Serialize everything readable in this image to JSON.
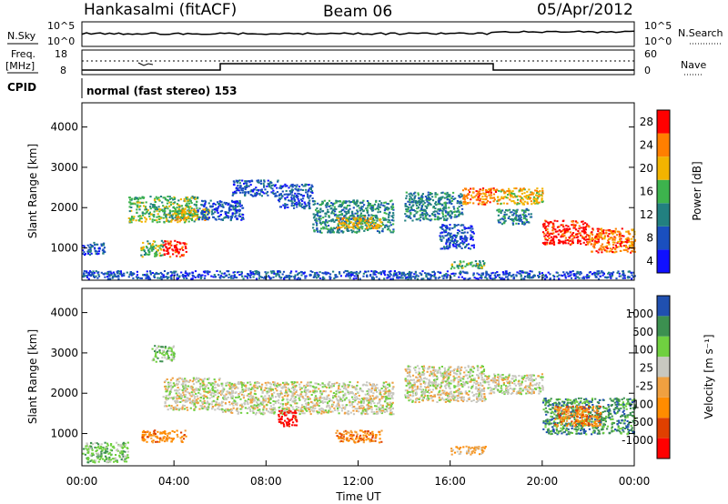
{
  "header": {
    "station": "Hankasalmi (fitACF)",
    "beam": "Beam 06",
    "date": "05/Apr/2012"
  },
  "strips": {
    "nsky_label": "N.Sky",
    "nsky_ticks": [
      "10^5",
      "10^0"
    ],
    "nsearch_label": "N.Search",
    "nsearch_ticks": [
      "10^5",
      "10^0"
    ],
    "freq_label": "Freq.",
    "freq_unit": "[MHz]",
    "freq_ticks": [
      "18",
      "8"
    ],
    "nave_label": "Nave",
    "nave_ticks": [
      "60",
      "0"
    ],
    "cpid_label": "CPID",
    "cpid_value": "normal (fast stereo) 153"
  },
  "chart_data": [
    {
      "type": "heatmap",
      "name": "power",
      "ylabel": "Slant Range [km]",
      "yticks": [
        "4000",
        "3000",
        "2000",
        "1000"
      ],
      "ylim": [
        200,
        4600
      ],
      "colorbar_label": "Power [dB]",
      "colorbar_ticks": [
        "28",
        "24",
        "20",
        "16",
        "12",
        "8",
        "4"
      ],
      "colors": [
        "#1010ff",
        "#1a4fbf",
        "#228080",
        "#3db34d",
        "#f2b400",
        "#ff7f00",
        "#ff0000"
      ],
      "blobs": [
        {
          "t": [
            0.0,
            1.0
          ],
          "r": [
            850,
            1150
          ],
          "v": 8
        },
        {
          "t": [
            2.0,
            5.0
          ],
          "r": [
            1650,
            2300
          ],
          "v": 14
        },
        {
          "t": [
            4.0,
            5.5
          ],
          "r": [
            1700,
            2000
          ],
          "v": 18
        },
        {
          "t": [
            5.0,
            7.0
          ],
          "r": [
            1700,
            2200
          ],
          "v": 6
        },
        {
          "t": [
            3.5,
            4.5
          ],
          "r": [
            800,
            1200
          ],
          "v": 28
        },
        {
          "t": [
            2.5,
            3.5
          ],
          "r": [
            800,
            1200
          ],
          "v": 14
        },
        {
          "t": [
            6.5,
            8.5
          ],
          "r": [
            2300,
            2700
          ],
          "v": 6
        },
        {
          "t": [
            8.5,
            10.0
          ],
          "r": [
            2000,
            2600
          ],
          "v": 8
        },
        {
          "t": [
            10.0,
            13.5
          ],
          "r": [
            1400,
            2200
          ],
          "v": 12
        },
        {
          "t": [
            11.0,
            13.0
          ],
          "r": [
            1500,
            1800
          ],
          "v": 18
        },
        {
          "t": [
            14.0,
            16.5
          ],
          "r": [
            1700,
            2400
          ],
          "v": 10
        },
        {
          "t": [
            15.5,
            17.0
          ],
          "r": [
            1000,
            1600
          ],
          "v": 8
        },
        {
          "t": [
            16.0,
            17.5
          ],
          "r": [
            500,
            700
          ],
          "v": 16
        },
        {
          "t": [
            16.5,
            18.0
          ],
          "r": [
            2100,
            2500
          ],
          "v": 24
        },
        {
          "t": [
            18.0,
            20.0
          ],
          "r": [
            2100,
            2500
          ],
          "v": 20
        },
        {
          "t": [
            18.0,
            19.5
          ],
          "r": [
            1600,
            2000
          ],
          "v": 12
        },
        {
          "t": [
            20.0,
            22.0
          ],
          "r": [
            1100,
            1700
          ],
          "v": 28
        },
        {
          "t": [
            22.0,
            24.0
          ],
          "r": [
            900,
            1500
          ],
          "v": 22
        },
        {
          "t": [
            0.0,
            24.0
          ],
          "r": [
            250,
            450
          ],
          "v": 6
        }
      ]
    },
    {
      "type": "heatmap",
      "name": "velocity",
      "ylabel": "Slant Range [km]",
      "yticks": [
        "4000",
        "3000",
        "2000",
        "1000"
      ],
      "ylim": [
        200,
        4600
      ],
      "colorbar_label": "Velocity [m s⁻¹]",
      "colorbar_ticks": [
        "1000",
        "500",
        "100",
        "25",
        "-25",
        "-100",
        "-500",
        "-1000"
      ],
      "colors": [
        "#ff0000",
        "#e04000",
        "#ff8c00",
        "#f0a040",
        "#c8c8c0",
        "#70d040",
        "#3c9050",
        "#2050b0"
      ],
      "blobs": [
        {
          "t": [
            3.5,
            6.0
          ],
          "r": [
            1600,
            2400
          ],
          "v": 4
        },
        {
          "t": [
            6.0,
            13.5
          ],
          "r": [
            1500,
            2300
          ],
          "v": 4
        },
        {
          "t": [
            14.0,
            17.5
          ],
          "r": [
            1800,
            2700
          ],
          "v": 4
        },
        {
          "t": [
            17.5,
            20.0
          ],
          "r": [
            2000,
            2500
          ],
          "v": 4
        },
        {
          "t": [
            20.0,
            24.0
          ],
          "r": [
            1000,
            1900
          ],
          "v": 6
        },
        {
          "t": [
            20.5,
            22.5
          ],
          "r": [
            1200,
            1700
          ],
          "v": 2
        },
        {
          "t": [
            2.5,
            4.5
          ],
          "r": [
            800,
            1100
          ],
          "v": 2
        },
        {
          "t": [
            8.5,
            9.3
          ],
          "r": [
            1200,
            1600
          ],
          "v": 0
        },
        {
          "t": [
            16.0,
            17.5
          ],
          "r": [
            500,
            700
          ],
          "v": 3
        },
        {
          "t": [
            0.0,
            2.0
          ],
          "r": [
            300,
            800
          ],
          "v": 5
        },
        {
          "t": [
            3.0,
            4.0
          ],
          "r": [
            2800,
            3200
          ],
          "v": 5
        },
        {
          "t": [
            11.0,
            13.0
          ],
          "r": [
            800,
            1100
          ],
          "v": 2
        }
      ]
    }
  ],
  "xaxis": {
    "label": "Time UT",
    "ticks": [
      "00:00",
      "04:00",
      "08:00",
      "12:00",
      "16:00",
      "20:00",
      "00:00"
    ],
    "range": [
      0,
      24
    ]
  }
}
